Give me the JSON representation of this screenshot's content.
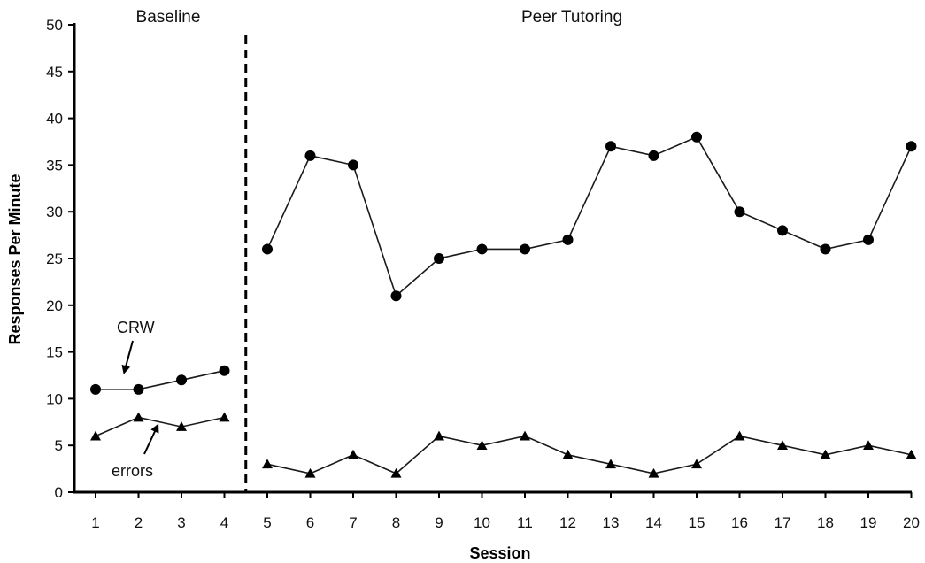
{
  "chart_data": {
    "type": "line",
    "xlabel": "Session",
    "ylabel": "Responses Per Minute",
    "ylim": [
      0,
      50
    ],
    "yticks": [
      0,
      5,
      10,
      15,
      20,
      25,
      30,
      35,
      40,
      45,
      50
    ],
    "xticks": [
      "1",
      "2",
      "3",
      "4",
      "5",
      "6",
      "7",
      "8",
      "9",
      "10",
      "11",
      "12",
      "13",
      "14",
      "15",
      "16",
      "17",
      "18",
      "19",
      "20"
    ],
    "phases": [
      {
        "label": "Baseline",
        "sessions": [
          1,
          4
        ]
      },
      {
        "label": "Peer Tutoring",
        "sessions": [
          5,
          20
        ]
      }
    ],
    "phase_change_after_session": 4,
    "annotations": [
      {
        "text": "CRW",
        "points_to": "CRW"
      },
      {
        "text": "errors",
        "points_to": "errors"
      }
    ],
    "series": [
      {
        "id": "CRW",
        "marker": "circle",
        "segments": [
          [
            [
              1,
              11
            ],
            [
              2,
              11
            ],
            [
              3,
              12
            ],
            [
              4,
              13
            ]
          ],
          [
            [
              5,
              26
            ],
            [
              6,
              36
            ],
            [
              7,
              35
            ],
            [
              8,
              21
            ],
            [
              9,
              25
            ],
            [
              10,
              26
            ],
            [
              11,
              26
            ],
            [
              12,
              27
            ],
            [
              13,
              37
            ],
            [
              14,
              36
            ],
            [
              15,
              38
            ],
            [
              16,
              30
            ],
            [
              17,
              28
            ],
            [
              18,
              26
            ],
            [
              19,
              27
            ],
            [
              20,
              37
            ]
          ]
        ]
      },
      {
        "id": "errors",
        "marker": "triangle",
        "segments": [
          [
            [
              1,
              6
            ],
            [
              2,
              8
            ],
            [
              3,
              7
            ],
            [
              4,
              8
            ]
          ],
          [
            [
              5,
              3
            ],
            [
              6,
              2
            ],
            [
              7,
              4
            ],
            [
              8,
              2
            ],
            [
              9,
              6
            ],
            [
              10,
              5
            ],
            [
              11,
              6
            ],
            [
              12,
              4
            ],
            [
              13,
              3
            ],
            [
              14,
              2
            ],
            [
              15,
              3
            ],
            [
              16,
              6
            ],
            [
              17,
              5
            ],
            [
              18,
              4
            ],
            [
              19,
              5
            ],
            [
              20,
              4
            ]
          ]
        ]
      }
    ],
    "colors": {
      "line": "#1a1a1a",
      "marker": "#000000",
      "axis": "#000000"
    }
  }
}
